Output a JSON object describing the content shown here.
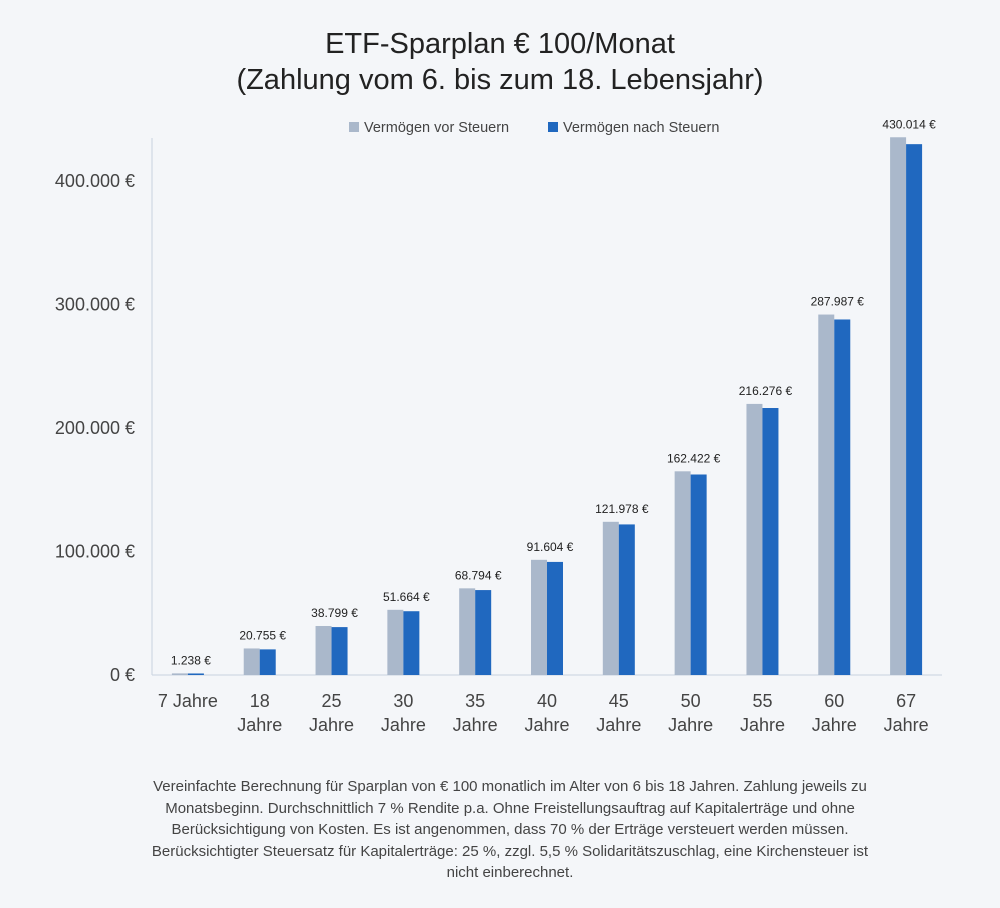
{
  "chart_data": {
    "type": "bar",
    "title_line1": "ETF-Sparplan € 100/Monat",
    "title_line2": "(Zahlung vom 6. bis zum 18. Lebensjahr)",
    "categories": [
      [
        "7 Jahre"
      ],
      [
        "18",
        "Jahre"
      ],
      [
        "25",
        "Jahre"
      ],
      [
        "30",
        "Jahre"
      ],
      [
        "35",
        "Jahre"
      ],
      [
        "40",
        "Jahre"
      ],
      [
        "45",
        "Jahre"
      ],
      [
        "50",
        "Jahre"
      ],
      [
        "55",
        "Jahre"
      ],
      [
        "60",
        "Jahre"
      ],
      [
        "67",
        "Jahre"
      ]
    ],
    "series": [
      {
        "name": "Vermögen vor Steuern",
        "color": "#aab8cb",
        "values": [
          1300,
          21500,
          39700,
          52800,
          70200,
          93300,
          124100,
          165000,
          219600,
          292000,
          435600
        ]
      },
      {
        "name": "Vermögen nach Steuern",
        "color": "#2068bf",
        "values": [
          1238,
          20755,
          38799,
          51664,
          68794,
          91604,
          121978,
          162422,
          216276,
          287987,
          430014
        ]
      }
    ],
    "data_labels": [
      "1.238 €",
      "20.755 €",
      "38.799 €",
      "51.664 €",
      "68.794 €",
      "91.604 €",
      "121.978 €",
      "162.422 €",
      "216.276 €",
      "287.987 €",
      "430.014 €"
    ],
    "y_ticks": [
      {
        "value": 0,
        "label": "0 €"
      },
      {
        "value": 100000,
        "label": "100.000 €"
      },
      {
        "value": 200000,
        "label": "200.000 €"
      },
      {
        "value": 300000,
        "label": "300.000 €"
      },
      {
        "value": 400000,
        "label": "400.000 €"
      }
    ],
    "ylim": [
      0,
      435000
    ],
    "grid": false,
    "legend_position": "top"
  },
  "footnote": [
    "Vereinfachte Berechnung für Sparplan von € 100 monatlich im Alter von 6 bis 18 Jahren. Zahlung jeweils zu",
    "Monatsbeginn. Durchschnittlich 7 % Rendite p.a. Ohne Freistellungsauftrag auf Kapitalerträge und ohne",
    "Berücksichtigung von Kosten. Es ist angenommen, dass 70 % der Erträge versteuert werden müssen.",
    "Berücksichtigter Steuersatz für Kapitalerträge: 25 %, zzgl. 5,5 % Solidaritätszuschlag, eine Kirchensteuer ist",
    "nicht einberechnet."
  ]
}
